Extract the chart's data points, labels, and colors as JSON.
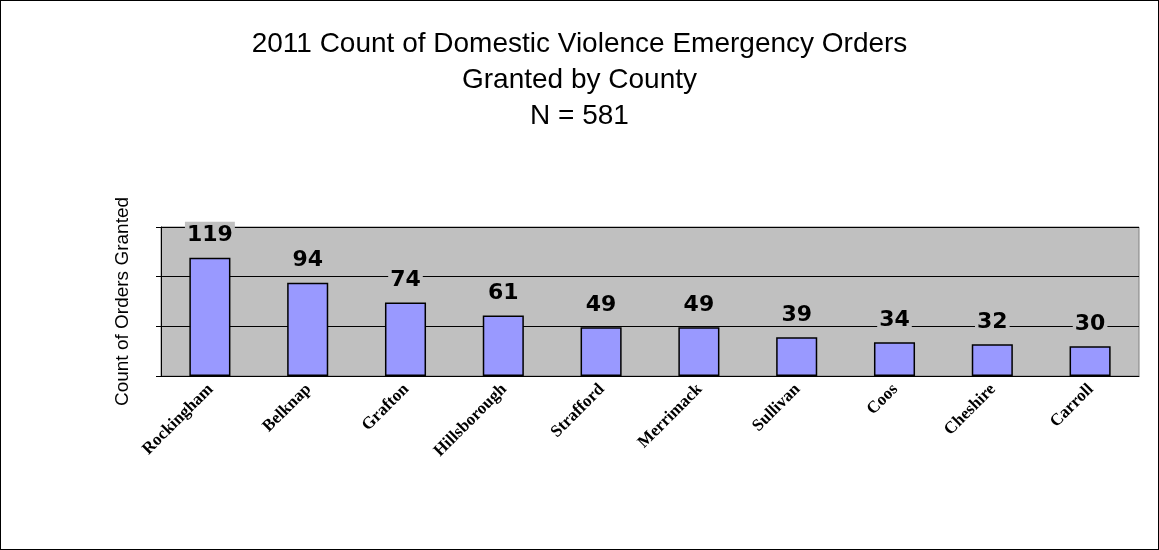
{
  "chart_data": {
    "type": "bar",
    "title": "2011 Count of Domestic Violence Emergency Orders\nGranted by County",
    "subtitle": "N = 581",
    "ylabel": "Count of Orders Granted",
    "categories": [
      "Rockingham",
      "Belknap",
      "Grafton",
      "Hillsborough",
      "Strafford",
      "Merrimack",
      "Sullivan",
      "Coos",
      "Cheshire",
      "Carroll"
    ],
    "values": [
      119,
      94,
      74,
      61,
      49,
      49,
      39,
      34,
      32,
      30
    ],
    "color": "#9999ff",
    "ylim": [
      0,
      150
    ],
    "yticks": [
      {
        "value": 0,
        "label": null
      },
      {
        "value": 50,
        "label": null
      },
      {
        "value": 100,
        "label": null
      },
      {
        "value": 150,
        "label": null
      }
    ],
    "tick_labels": "x",
    "grid": "y",
    "data_labels": true
  }
}
